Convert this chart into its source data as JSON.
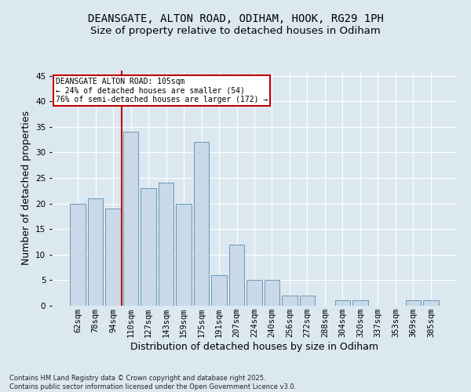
{
  "title_line1": "DEANSGATE, ALTON ROAD, ODIHAM, HOOK, RG29 1PH",
  "title_line2": "Size of property relative to detached houses in Odiham",
  "xlabel": "Distribution of detached houses by size in Odiham",
  "ylabel": "Number of detached properties",
  "categories": [
    "62sqm",
    "78sqm",
    "94sqm",
    "110sqm",
    "127sqm",
    "143sqm",
    "159sqm",
    "175sqm",
    "191sqm",
    "207sqm",
    "224sqm",
    "240sqm",
    "256sqm",
    "272sqm",
    "288sqm",
    "304sqm",
    "320sqm",
    "337sqm",
    "353sqm",
    "369sqm",
    "385sqm"
  ],
  "values": [
    20,
    21,
    19,
    34,
    23,
    24,
    20,
    32,
    6,
    12,
    5,
    5,
    2,
    2,
    0,
    1,
    1,
    0,
    0,
    1,
    1
  ],
  "bar_color": "#c9d9e8",
  "bar_edge_color": "#5a8ab0",
  "vline_color": "#c00000",
  "annotation_title": "DEANSGATE ALTON ROAD: 105sqm",
  "annotation_line2": "← 24% of detached houses are smaller (54)",
  "annotation_line3": "76% of semi-detached houses are larger (172) →",
  "annotation_box_color": "#c00000",
  "ylim": [
    0,
    46
  ],
  "yticks": [
    0,
    5,
    10,
    15,
    20,
    25,
    30,
    35,
    40,
    45
  ],
  "background_color": "#dce8f0",
  "plot_bg_color": "#dce8f0",
  "footer_line1": "Contains HM Land Registry data © Crown copyright and database right 2025.",
  "footer_line2": "Contains public sector information licensed under the Open Government Licence v3.0.",
  "grid_color": "#ffffff",
  "title_fontsize": 10,
  "subtitle_fontsize": 9.5,
  "tick_fontsize": 7.5,
  "label_fontsize": 9
}
